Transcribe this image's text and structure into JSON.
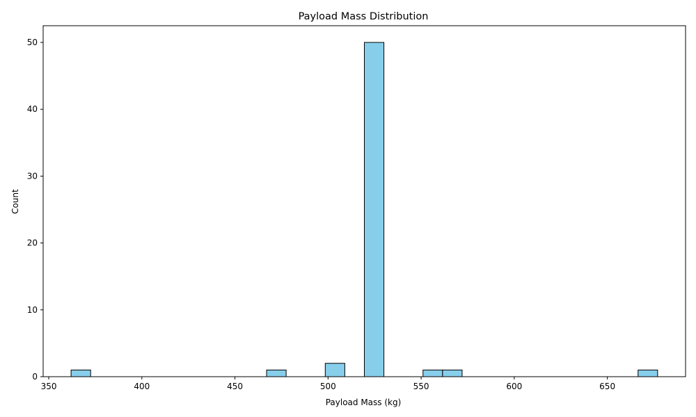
{
  "chart_data": {
    "type": "bar",
    "title": "Payload Mass Distribution",
    "xlabel": "Payload Mass (kg)",
    "ylabel": "Count",
    "xlim": [
      347,
      692
    ],
    "ylim": [
      0,
      52.5
    ],
    "xticks": [
      350,
      400,
      450,
      500,
      550,
      600,
      650
    ],
    "yticks": [
      0,
      10,
      20,
      30,
      40,
      50
    ],
    "grid": false,
    "bar_color": "#87CEEB",
    "edge_color": "#000000",
    "bins": [
      {
        "start": 362.0,
        "end": 372.5,
        "count": 1
      },
      {
        "start": 467.0,
        "end": 477.5,
        "count": 1
      },
      {
        "start": 498.5,
        "end": 509.0,
        "count": 2
      },
      {
        "start": 519.5,
        "end": 530.0,
        "count": 50
      },
      {
        "start": 551.0,
        "end": 561.5,
        "count": 1
      },
      {
        "start": 561.5,
        "end": 572.0,
        "count": 1
      },
      {
        "start": 666.5,
        "end": 677.0,
        "count": 1
      }
    ]
  }
}
